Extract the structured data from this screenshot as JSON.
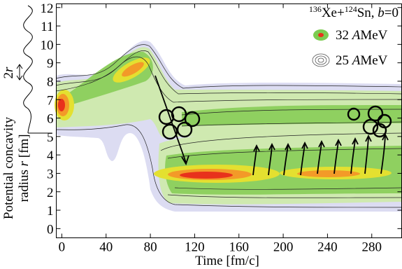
{
  "chart_data": {
    "type": "contour",
    "title": {
      "mass1": "136",
      "element1": "Xe",
      "plus": "+",
      "mass2": "124",
      "element2": "Sn,",
      "param": "b",
      "param_value": "=0"
    },
    "legend": [
      {
        "number": "32",
        "unit_italic": "A",
        "unit": "MeV"
      },
      {
        "number": "25",
        "unit_italic": "A",
        "unit": "MeV"
      }
    ],
    "xlabel": "Time [fm/c]",
    "ylabel": [
      "Potential concavity",
      "radius",
      "r",
      "[fm]"
    ],
    "annotation": {
      "symbol_number": "2",
      "symbol": "r"
    },
    "xlim": [
      -5,
      307
    ],
    "ylim": [
      -0.5,
      12.2
    ],
    "xticks": [
      0,
      40,
      80,
      120,
      160,
      200,
      240,
      280
    ],
    "yticks": [
      0,
      1,
      2,
      3,
      4,
      5,
      6,
      7,
      8,
      9,
      10,
      11,
      12
    ]
  }
}
